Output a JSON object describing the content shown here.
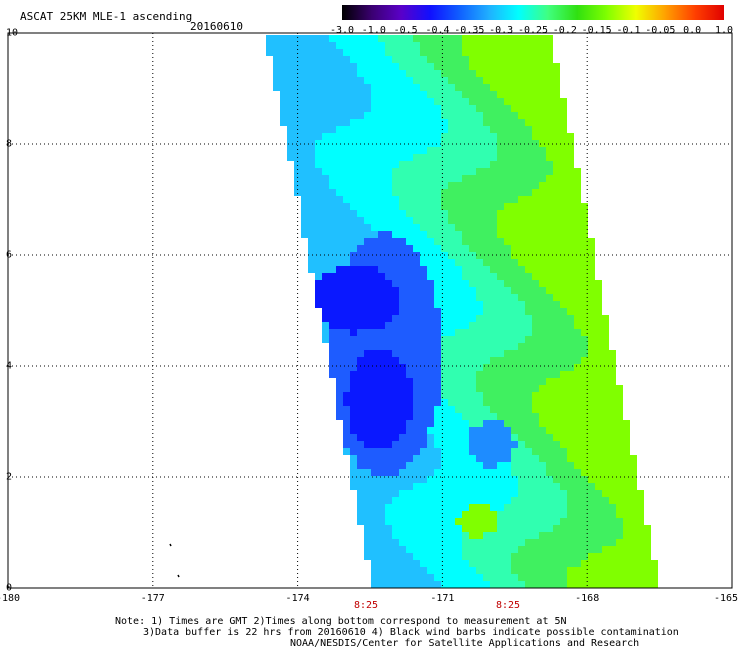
{
  "header": {
    "title": "ASCAT 25KM MLE-1 ascending",
    "date": "20160610"
  },
  "colorbar": {
    "labels": [
      "-3.0",
      "-1.0",
      "-0.5",
      "-0.4",
      "-0.35",
      "-0.3",
      "-0.25",
      "-0.2",
      "-0.15",
      "-0.1",
      "-0.05",
      "0.0",
      "1.0"
    ],
    "colors": [
      "#000000",
      "#3a0070",
      "#5a00c8",
      "#1010ff",
      "#1060ff",
      "#20b0ff",
      "#00ffff",
      "#40ff80",
      "#30e010",
      "#80ff00",
      "#f0ff00",
      "#ffa000",
      "#ff4000",
      "#e00000"
    ]
  },
  "axes": {
    "x_ticks": [
      "-180",
      "-177",
      "-174",
      "-171",
      "-168",
      "-165"
    ],
    "y_ticks": [
      "10",
      "8",
      "6",
      "4",
      "2",
      "0"
    ],
    "x_range": [
      -180,
      -165
    ],
    "y_range": [
      0,
      10
    ]
  },
  "times": [
    "8:25",
    "8:25"
  ],
  "notes": {
    "line1": "Note: 1) Times are GMT 2)Times along bottom correspond to measurement at 5N",
    "line2": "3)Data buffer is 22 hrs from 20160610 4) Black wind barbs indicate possible contamination",
    "line3": "NOAA/NESDIS/Center for Satellite Applications and Research"
  },
  "swath": {
    "value_colors": {
      "-0.45": "#0a18ff",
      "-0.4": "#1e5cff",
      "-0.35": "#1e8cff",
      "-0.3": "#20c0ff",
      "-0.25": "#00ffff",
      "-0.2": "#30ffb0",
      "-0.15": "#40f060",
      "-0.1": "#80ff00",
      "-0.05": "#f0ff00"
    }
  }
}
